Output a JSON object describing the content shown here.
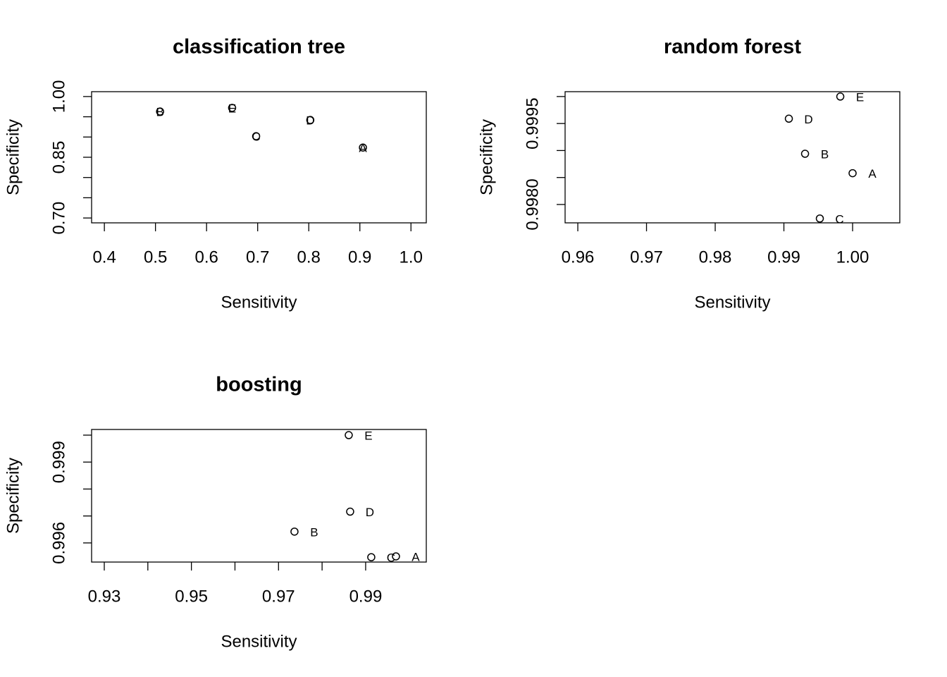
{
  "chart_data": [
    {
      "type": "scatter",
      "title": "classification tree",
      "xlabel": "Sensitivity",
      "ylabel": "Specificity",
      "x": [
        0.906,
        0.509,
        0.697,
        0.803,
        0.65
      ],
      "values": [
        0.874,
        0.963,
        0.902,
        0.942,
        0.972
      ],
      "point_labels": [
        "A",
        "B",
        "C",
        "D",
        "E"
      ],
      "xlim": [
        0.375,
        1.03
      ],
      "xticks": [
        0.4,
        0.5,
        0.6,
        0.7,
        0.8,
        0.9,
        {
          "value": 1,
          "label": "1.0"
        }
      ],
      "ylim": [
        0.688,
        1.012
      ],
      "yticks": [
        {
          "value": 0.7,
          "label": "0.70"
        },
        0.85,
        {
          "value": 1,
          "label": "1.00"
        }
      ],
      "y_unlabeled_ticks": [
        0.75,
        0.8,
        0.9,
        0.95
      ]
    },
    {
      "type": "scatter",
      "title": "random forest",
      "xlabel": "Sensitivity",
      "ylabel": "Specificity",
      "x": [
        1.0,
        0.99308,
        0.99523,
        0.99072,
        0.99821
      ],
      "values": [
        0.99858,
        0.99894,
        0.99774,
        0.99959,
        1.0
      ],
      "point_labels": [
        "A",
        "B",
        "C",
        "D",
        "E"
      ],
      "xlim": [
        0.95815,
        1.00687
      ],
      "xticks": [
        0.96,
        0.97,
        0.98,
        0.99,
        {
          "value": 1,
          "label": "1.00"
        }
      ],
      "ylim": [
        0.99766,
        1.00009
      ],
      "yticks": [
        {
          "value": 0.998,
          "label": "0.9980"
        },
        0.9995
      ],
      "y_unlabeled_ticks": [
        0.9985,
        0.999,
        1.0
      ]
    },
    {
      "type": "scatter",
      "title": "boosting",
      "xlabel": "Sensitivity",
      "ylabel": "Specificity",
      "x": [
        0.99696,
        0.97366,
        0.99129,
        0.98644,
        0.98612
      ],
      "values": [
        0.9955,
        0.99642,
        0.99547,
        0.99716,
        1.0
      ],
      "point_labels": [
        "A",
        "B",
        "C",
        "D",
        "E"
      ],
      "xlim": [
        0.92709,
        1.00392
      ],
      "xticks": [
        0.93,
        0.95,
        0.97,
        0.99
      ],
      "x_unlabeled_ticks": [
        0.94,
        0.96,
        0.98
      ],
      "ylim": [
        0.99529,
        1.00021
      ],
      "yticks": [
        0.996,
        0.999
      ],
      "y_unlabeled_ticks": [
        0.997,
        0.998,
        1.0
      ]
    }
  ]
}
